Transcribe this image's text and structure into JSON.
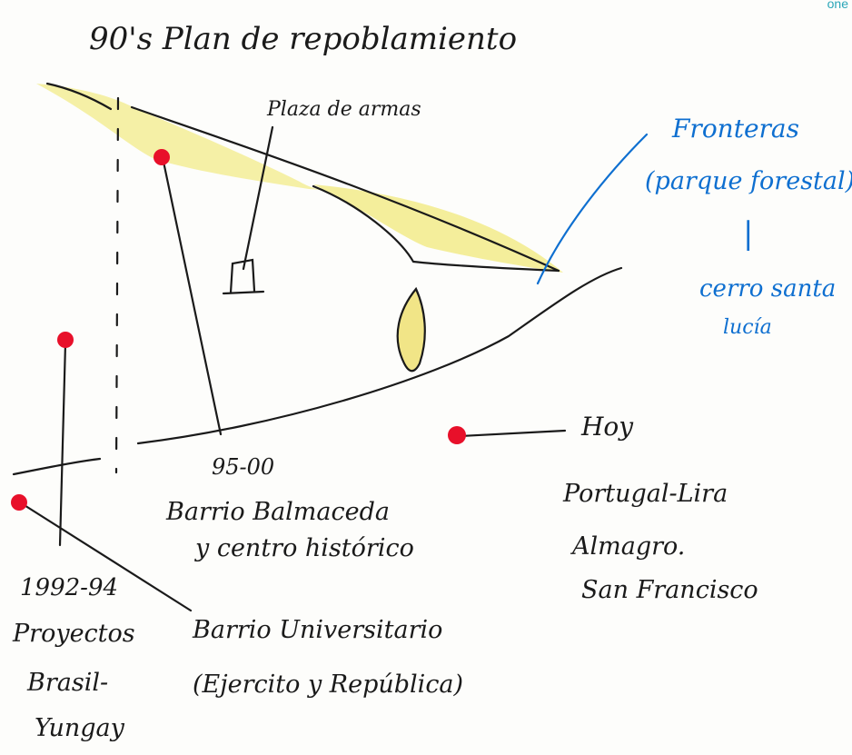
{
  "corner_text": "one",
  "title": "90's Plan de repoblamiento",
  "labels": {
    "plaza": "Plaza de armas",
    "fronteras_line1": "Fronteras",
    "fronteras_line2": "(parque forestal)",
    "fronteras_sep": "|",
    "fronteras_line3": "cerro santa",
    "fronteras_line4": "lucía",
    "period_95": "95-00",
    "balmaceda_line1": "Barrio Balmaceda",
    "balmaceda_line2": "y centro histórico",
    "hoy": "Hoy",
    "hoy_line1": "Portugal-Lira",
    "hoy_line2": "Almagro.",
    "hoy_line3": "San Francisco",
    "period_92": "1992-94",
    "proyectos_line1": "Proyectos",
    "proyectos_line2": "Brasil-",
    "proyectos_line3": "Yungay",
    "universitario_line1": "Barrio Universitario",
    "universitario_line2": "(Ejercito y República)"
  },
  "colors": {
    "ink": "#1a1a1a",
    "marker_red": "#e8102a",
    "highlight_yellow": "#f2eb8a",
    "pen_blue": "#0e6fd0"
  }
}
